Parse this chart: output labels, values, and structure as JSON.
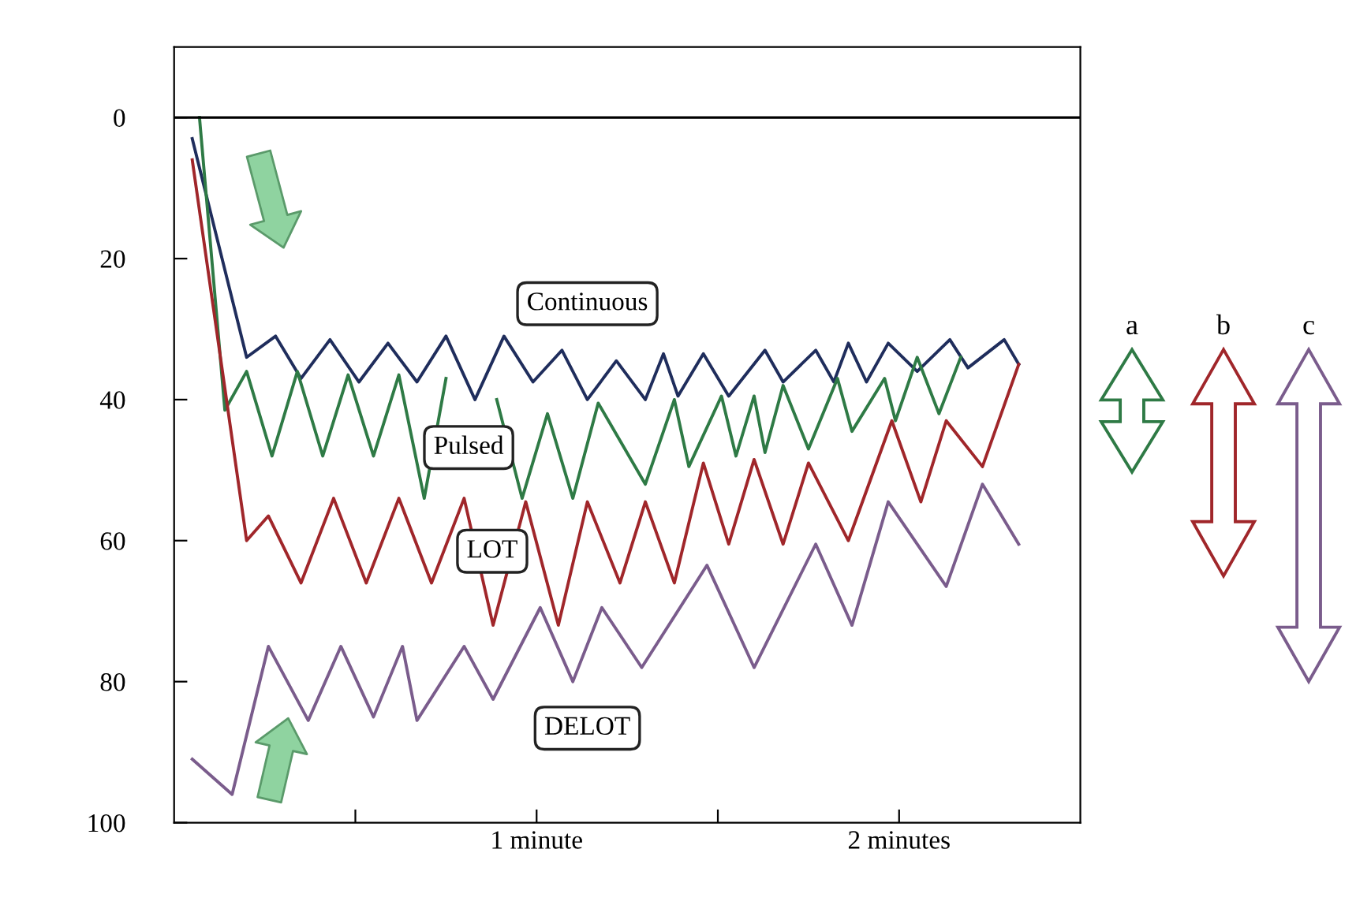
{
  "chart_data": {
    "type": "line",
    "xlim": [
      0,
      2.5
    ],
    "xticks": [
      {
        "value": 0.5,
        "label": null
      },
      {
        "value": 1,
        "label": "1 minute"
      },
      {
        "value": 1.5,
        "label": null
      },
      {
        "value": 2,
        "label": "2 minutes"
      }
    ],
    "ylim": [
      100,
      -10
    ],
    "yticks": [
      0,
      20,
      40,
      60,
      80,
      100
    ],
    "ref_lines": [
      {
        "axis": "y",
        "value": 0,
        "color": "#000000"
      }
    ],
    "series": [
      {
        "name": "Continuous",
        "color": "#1f2d5c",
        "x": [
          0.05,
          0.2,
          0.28,
          0.35,
          0.43,
          0.51,
          0.59,
          0.67,
          0.75,
          0.83,
          0.91,
          0.99,
          1.07,
          1.14,
          1.22,
          1.3,
          1.35,
          1.39,
          1.46,
          1.53,
          1.63,
          1.68,
          1.77,
          1.82,
          1.86,
          1.91,
          1.97,
          2.05,
          2.14,
          2.19,
          2.29,
          2.33
        ],
        "values": [
          3,
          34,
          31,
          37,
          31.5,
          37.5,
          32,
          37.5,
          31,
          40,
          31,
          37.5,
          33,
          40,
          34.5,
          40,
          33.5,
          39.5,
          33.5,
          39.5,
          33,
          37.5,
          33,
          37.5,
          32,
          37.5,
          32,
          36,
          31.5,
          35.5,
          31.5,
          35
        ]
      },
      {
        "name": "Pulsed",
        "color": "#2e7a45",
        "x": [
          0.07,
          0.14,
          0.2,
          0.27,
          0.34,
          0.41,
          0.48,
          0.55,
          0.62,
          0.69,
          0.75,
          0.82,
          0.89,
          0.96,
          1.03,
          1.1,
          1.17,
          1.3,
          1.38,
          1.42,
          1.51,
          1.55,
          1.6,
          1.63,
          1.68,
          1.75,
          1.83,
          1.87,
          1.96,
          1.99,
          2.05,
          2.11,
          2.17
        ],
        "values": [
          0,
          41.5,
          36,
          48,
          36,
          48,
          36.5,
          48,
          36.5,
          54,
          37,
          null,
          40,
          54,
          42,
          54,
          40.5,
          52,
          40,
          49.5,
          39.5,
          48,
          39.5,
          47.5,
          38,
          47,
          37,
          44.5,
          37,
          43,
          34,
          42,
          34
        ]
      },
      {
        "name": "LOT",
        "color": "#a0262a",
        "x": [
          0.05,
          0.2,
          0.26,
          0.35,
          0.44,
          0.53,
          0.62,
          0.71,
          0.8,
          0.88,
          0.97,
          1.06,
          1.14,
          1.23,
          1.3,
          1.38,
          1.46,
          1.53,
          1.6,
          1.68,
          1.75,
          1.86,
          1.98,
          2.06,
          2.13,
          2.23,
          2.33
        ],
        "values": [
          6,
          60,
          56.5,
          66,
          54,
          66,
          54,
          66,
          54,
          72,
          54.5,
          72,
          54.5,
          66,
          54.5,
          66,
          49,
          60.5,
          48.5,
          60.5,
          49,
          60,
          43,
          54.5,
          43,
          49.5,
          35
        ]
      },
      {
        "name": "DELOT",
        "color": "#7a5c8c",
        "x": [
          0.05,
          0.16,
          0.26,
          0.37,
          0.46,
          0.55,
          0.63,
          0.67,
          0.8,
          0.88,
          1.01,
          1.1,
          1.18,
          1.29,
          1.47,
          1.6,
          1.77,
          1.87,
          1.97,
          2.13,
          2.23,
          2.33
        ],
        "values": [
          91,
          96,
          75,
          85.5,
          75,
          85,
          75,
          85.5,
          75,
          82.5,
          69.5,
          80,
          69.5,
          78,
          63.5,
          78,
          60.5,
          72,
          54.5,
          66.5,
          52,
          60.5
        ]
      }
    ],
    "annotations": [
      "a",
      "b",
      "c"
    ]
  }
}
